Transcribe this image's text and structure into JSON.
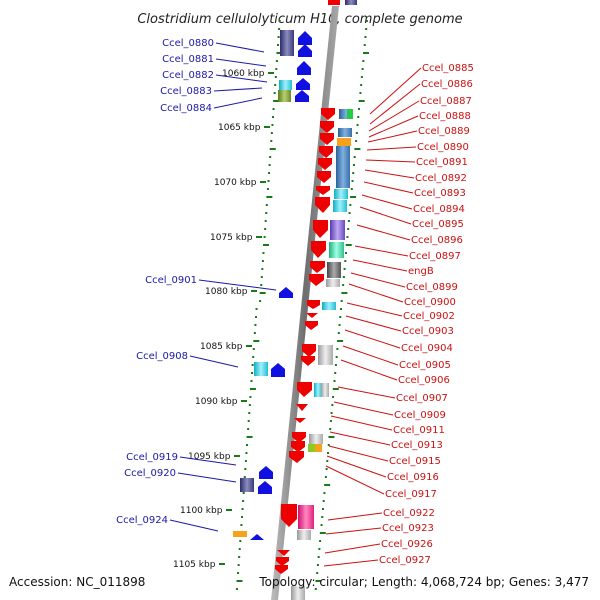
{
  "title": "Clostridium cellulolyticum H10, complete genome",
  "footer": {
    "accession": "Accession: NC_011898",
    "topology": "Topology: circular; Length: 4,068,724 bp; Genes: 3,477"
  },
  "colors": {
    "backbone": "#888888",
    "forward_label": "#1a1aa6",
    "reverse_label": "#cc1111",
    "tick": "#1a7a1a"
  },
  "scale_labels": [
    "1060 kbp",
    "1065 kbp",
    "1070 kbp",
    "1075 kbp",
    "1080 kbp",
    "1085 kbp",
    "1090 kbp",
    "1095 kbp",
    "1100 kbp",
    "1105 kbp"
  ],
  "forward_genes": [
    "Ccel_0880",
    "Ccel_0881",
    "Ccel_0882",
    "Ccel_0883",
    "Ccel_0884",
    "Ccel_0901",
    "Ccel_0908",
    "Ccel_0919",
    "Ccel_0920",
    "Ccel_0924"
  ],
  "reverse_genes": [
    "Ccel_0885",
    "Ccel_0886",
    "Ccel_0887",
    "Ccel_0888",
    "Ccel_0889",
    "Ccel_0890",
    "Ccel_0891",
    "Ccel_0892",
    "Ccel_0893",
    "Ccel_0894",
    "Ccel_0895",
    "Ccel_0896",
    "Ccel_0897",
    "engB",
    "Ccel_0899",
    "Ccel_0900",
    "Ccel_0902",
    "Ccel_0903",
    "Ccel_0904",
    "Ccel_0905",
    "Ccel_0906",
    "Ccel_0907",
    "Ccel_0909",
    "Ccel_0911",
    "Ccel_0913",
    "Ccel_0915",
    "Ccel_0916",
    "Ccel_0917",
    "Ccel_0922",
    "Ccel_0923",
    "Ccel_0926",
    "Ccel_0927"
  ]
}
